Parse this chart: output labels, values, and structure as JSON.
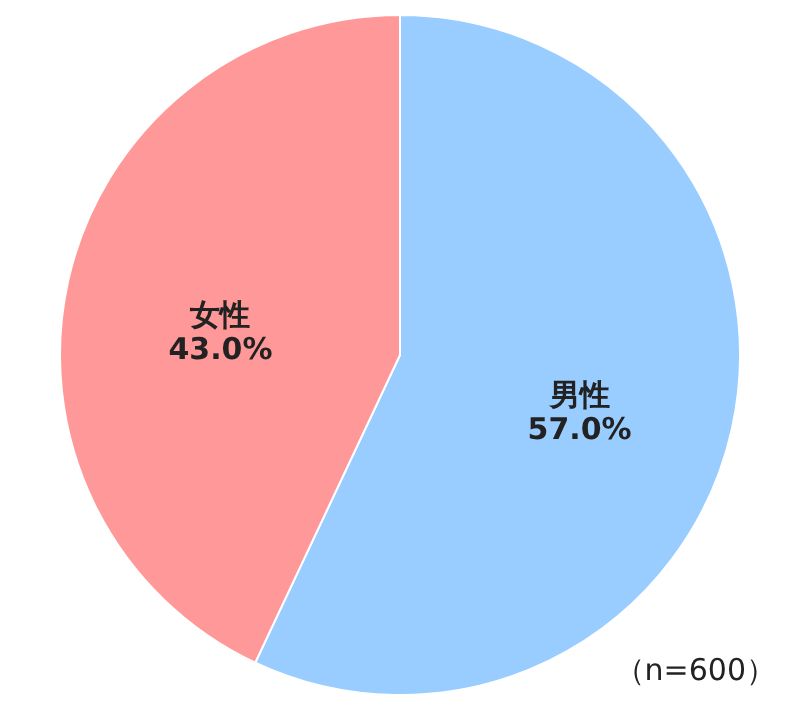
{
  "chart_data": {
    "type": "pie",
    "categories": [
      "男性",
      "女性"
    ],
    "values": [
      57.0,
      43.0
    ],
    "colors": [
      "#99ccff",
      "#ff9999"
    ],
    "value_labels": [
      "57.0%",
      "43.0%"
    ],
    "annotations": [
      "（n=600）"
    ]
  }
}
